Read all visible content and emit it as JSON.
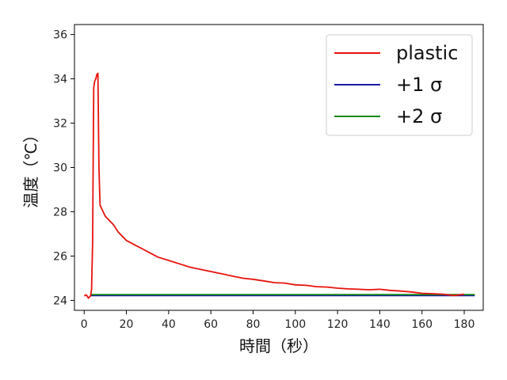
{
  "chart_data": {
    "type": "line",
    "title": "",
    "xlabel": "時間（秒）",
    "ylabel": "温度（℃）",
    "xlim": [
      -4.6,
      189
    ],
    "ylim": [
      23.55,
      36.45
    ],
    "xticks": [
      0,
      20,
      40,
      60,
      80,
      100,
      120,
      140,
      160,
      180
    ],
    "yticks": [
      24,
      26,
      28,
      30,
      32,
      34,
      36
    ],
    "grid": false,
    "legend_position": "top-right",
    "series": [
      {
        "name": "plastic",
        "color": "#e8120c",
        "x": [
          0,
          1,
          2,
          3,
          3.5,
          4,
          4.5,
          5,
          5.5,
          6,
          6.5,
          7,
          7.5,
          8,
          9,
          10,
          12,
          14,
          16,
          18,
          20,
          22,
          24,
          26,
          28,
          30,
          35,
          40,
          45,
          50,
          55,
          60,
          65,
          70,
          75,
          80,
          85,
          90,
          95,
          100,
          105,
          110,
          115,
          120,
          125,
          130,
          135,
          140,
          145,
          150,
          155,
          160,
          165,
          170,
          175,
          180
        ],
        "y": [
          24.2,
          24.25,
          24.1,
          24.2,
          24.5,
          26.6,
          33.6,
          33.9,
          34.0,
          34.2,
          34.25,
          30.0,
          28.3,
          28.2,
          28.0,
          27.8,
          27.6,
          27.4,
          27.1,
          26.9,
          26.7,
          26.6,
          26.5,
          26.4,
          26.3,
          26.2,
          25.95,
          25.8,
          25.65,
          25.5,
          25.4,
          25.3,
          25.2,
          25.1,
          25.0,
          24.95,
          24.88,
          24.8,
          24.78,
          24.7,
          24.68,
          24.62,
          24.6,
          24.55,
          24.52,
          24.5,
          24.48,
          24.5,
          24.45,
          24.42,
          24.38,
          24.32,
          24.3,
          24.28,
          24.22,
          24.28
        ]
      },
      {
        "name": "+1 σ",
        "color": "#1a1aa6",
        "x": [
          3,
          185
        ],
        "y": [
          24.22,
          24.22
        ]
      },
      {
        "name": "+2 σ",
        "color": "#118811",
        "x": [
          3,
          185
        ],
        "y": [
          24.26,
          24.26
        ]
      }
    ]
  }
}
